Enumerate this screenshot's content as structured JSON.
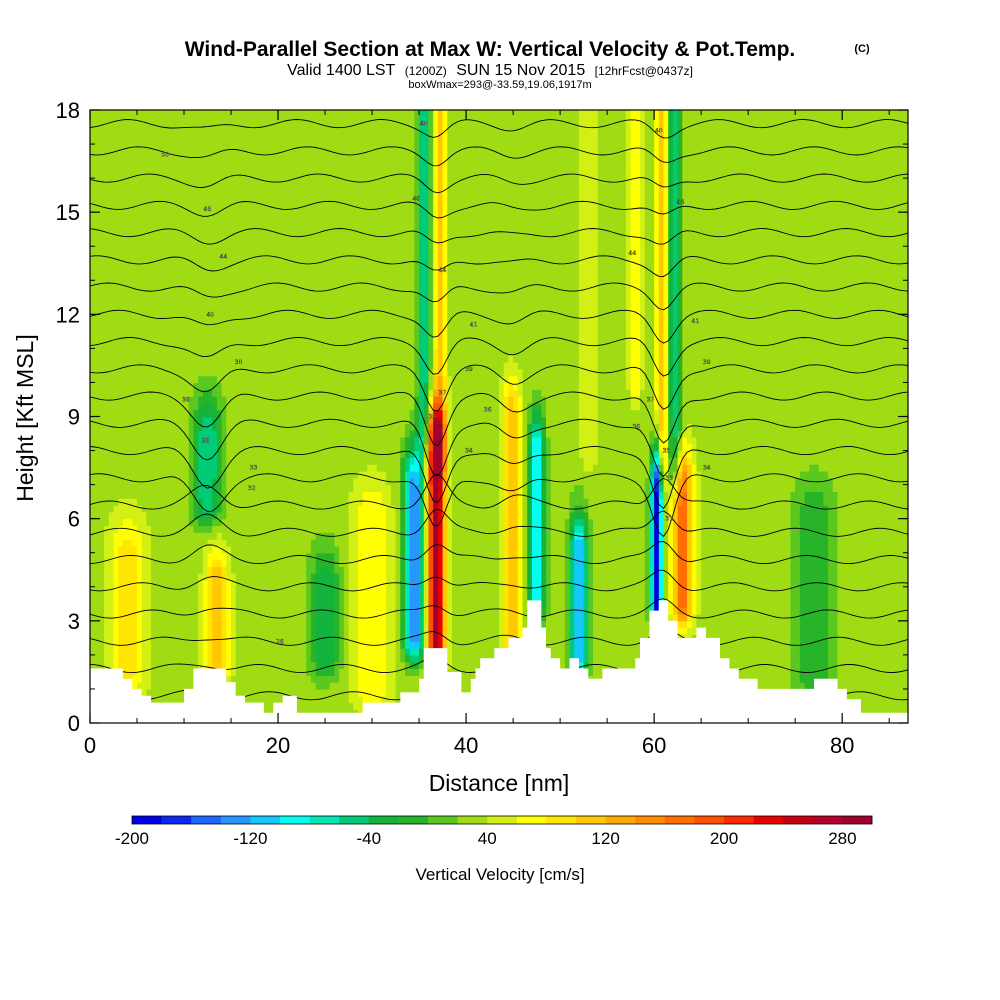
{
  "header": {
    "title": "Wind-Parallel Section at Max W: Vertical Velocity & Pot.Temp.",
    "copyright": "(C)",
    "valid_prefix": "Valid 1400 LST",
    "valid_utc": "(1200Z)",
    "valid_date": "SUN 15 Nov 2015",
    "forecast": "[12hrFcst@0437z]",
    "box_info": "boxWmax=293@-33.59,19.06,1917m"
  },
  "chart_data": {
    "type": "heatmap",
    "title": "Wind-Parallel Section at Max W: Vertical Velocity & Pot.Temp.",
    "xlabel": "Distance [nm]",
    "ylabel": "Height [Kft MSL]",
    "xlim": [
      0,
      87
    ],
    "ylim": [
      0,
      18
    ],
    "x_ticks": [
      0,
      20,
      40,
      60,
      80
    ],
    "y_ticks": [
      0,
      3,
      6,
      9,
      12,
      15,
      18
    ],
    "colorbar": {
      "label": "Vertical Velocity [cm/s]",
      "min": -200,
      "max": 300,
      "step": 20,
      "tick_values": [
        -200,
        -120,
        -40,
        40,
        120,
        200,
        280
      ],
      "tick_labels": [
        "-200",
        "-120",
        "-40",
        "40",
        "120",
        "200",
        "280"
      ],
      "colors": [
        "#0000e6",
        "#0a28f0",
        "#1e64ff",
        "#2896ff",
        "#14c8ff",
        "#00fff0",
        "#00e6b4",
        "#00cc78",
        "#14b43c",
        "#28b428",
        "#5ac81e",
        "#a0dc14",
        "#d2f014",
        "#ffff00",
        "#ffe600",
        "#ffc800",
        "#ffaa00",
        "#ff8c00",
        "#ff6e00",
        "#ff5000",
        "#ff2800",
        "#e60000",
        "#c80014",
        "#b4002a",
        "#a00030"
      ]
    },
    "background_w": 30,
    "w_features": [
      {
        "x": 36.8,
        "z_bottom": 2.2,
        "z_top": 8.2,
        "w": 293,
        "width": 0.9
      },
      {
        "x": 37.2,
        "z_bottom": 8,
        "z_top": 17.5,
        "w": 110,
        "width": 0.7
      },
      {
        "x": 34.5,
        "z_bottom": 2.5,
        "z_top": 7,
        "w": -130,
        "width": 1.1
      },
      {
        "x": 35.5,
        "z_bottom": 8.5,
        "z_top": 18,
        "w": -60,
        "width": 0.7
      },
      {
        "x": 44.8,
        "z_bottom": 2.5,
        "z_top": 9,
        "w": 120,
        "width": 1.0
      },
      {
        "x": 47.5,
        "z_bottom": 3.5,
        "z_top": 8,
        "w": -100,
        "width": 0.8
      },
      {
        "x": 52,
        "z_bottom": 2,
        "z_top": 5,
        "w": -120,
        "width": 0.9
      },
      {
        "x": 53,
        "z_bottom": 8,
        "z_top": 18,
        "w": 60,
        "width": 0.8
      },
      {
        "x": 60.3,
        "z_bottom": 3.2,
        "z_top": 7,
        "w": -200,
        "width": 0.6
      },
      {
        "x": 63,
        "z_bottom": 3.5,
        "z_top": 7,
        "w": 170,
        "width": 1.1
      },
      {
        "x": 60.8,
        "z_bottom": 7.5,
        "z_top": 18,
        "w": 120,
        "width": 0.6
      },
      {
        "x": 62.2,
        "z_bottom": 7.5,
        "z_top": 18,
        "w": -60,
        "width": 0.7
      },
      {
        "x": 12.5,
        "z_bottom": 6.5,
        "z_top": 8.5,
        "w": -60,
        "width": 1.5
      },
      {
        "x": 13.5,
        "z_bottom": 1.5,
        "z_top": 4,
        "w": 120,
        "width": 1.2
      },
      {
        "x": 4,
        "z_bottom": 1.5,
        "z_top": 5,
        "w": 90,
        "width": 2.0
      },
      {
        "x": 30,
        "z_bottom": 1,
        "z_top": 6,
        "w": 80,
        "width": 2.0
      },
      {
        "x": 77,
        "z_bottom": 1.5,
        "z_top": 6,
        "w": -20,
        "width": 2.0
      },
      {
        "x": 58,
        "z_bottom": 10,
        "z_top": 18,
        "w": 80,
        "width": 0.6
      },
      {
        "x": 25,
        "z_bottom": 2,
        "z_top": 4,
        "w": -40,
        "width": 1.5
      }
    ],
    "terrain_height": [
      [
        0,
        1.6
      ],
      [
        3.5,
        1.6
      ],
      [
        3.5,
        1.3
      ],
      [
        4.5,
        1.3
      ],
      [
        4.5,
        1.0
      ],
      [
        5.5,
        1.0
      ],
      [
        5.5,
        0.8
      ],
      [
        6.5,
        0.8
      ],
      [
        6.5,
        0.6
      ],
      [
        10,
        0.6
      ],
      [
        10,
        1.0
      ],
      [
        11,
        1.0
      ],
      [
        11,
        1.6
      ],
      [
        14.5,
        1.6
      ],
      [
        14.5,
        1.2
      ],
      [
        15.5,
        1.2
      ],
      [
        15.5,
        0.8
      ],
      [
        16.5,
        0.8
      ],
      [
        16.5,
        0.6
      ],
      [
        18.5,
        0.6
      ],
      [
        18.5,
        0.3
      ],
      [
        19.5,
        0.3
      ],
      [
        19.5,
        0.6
      ],
      [
        20.5,
        0.6
      ],
      [
        20.5,
        0.8
      ],
      [
        22,
        0.8
      ],
      [
        22,
        0.3
      ],
      [
        29,
        0.3
      ],
      [
        29,
        0.6
      ],
      [
        33,
        0.6
      ],
      [
        33,
        0.9
      ],
      [
        35,
        0.9
      ],
      [
        35,
        1.3
      ],
      [
        35.5,
        1.3
      ],
      [
        35.5,
        2.2
      ],
      [
        38,
        2.2
      ],
      [
        38,
        1.5
      ],
      [
        39.5,
        1.5
      ],
      [
        39.5,
        0.9
      ],
      [
        40.5,
        0.9
      ],
      [
        40.5,
        1.3
      ],
      [
        41,
        1.3
      ],
      [
        41,
        1.6
      ],
      [
        41.5,
        1.6
      ],
      [
        41.5,
        1.9
      ],
      [
        43,
        1.9
      ],
      [
        43,
        2.2
      ],
      [
        44.5,
        2.2
      ],
      [
        44.5,
        2.5
      ],
      [
        46,
        2.5
      ],
      [
        46,
        2.8
      ],
      [
        46.5,
        2.8
      ],
      [
        46.5,
        3.6
      ],
      [
        48,
        3.6
      ],
      [
        48,
        2.8
      ],
      [
        48.5,
        2.8
      ],
      [
        48.5,
        2.2
      ],
      [
        49,
        2.2
      ],
      [
        49,
        1.9
      ],
      [
        50,
        1.9
      ],
      [
        50,
        1.6
      ],
      [
        51,
        1.6
      ],
      [
        51,
        1.9
      ],
      [
        52,
        1.9
      ],
      [
        52,
        1.6
      ],
      [
        53,
        1.6
      ],
      [
        53,
        1.3
      ],
      [
        54.5,
        1.3
      ],
      [
        54.5,
        1.6
      ],
      [
        58,
        1.6
      ],
      [
        58,
        1.9
      ],
      [
        58.5,
        1.9
      ],
      [
        58.5,
        2.5
      ],
      [
        59.5,
        2.5
      ],
      [
        59.5,
        3.3
      ],
      [
        60.5,
        3.3
      ],
      [
        60.5,
        3.6
      ],
      [
        61.5,
        3.6
      ],
      [
        61.5,
        3.0
      ],
      [
        62.5,
        3.0
      ],
      [
        62.5,
        2.5
      ],
      [
        64.5,
        2.5
      ],
      [
        64.5,
        2.8
      ],
      [
        65.5,
        2.8
      ],
      [
        65.5,
        2.5
      ],
      [
        67,
        2.5
      ],
      [
        67,
        1.9
      ],
      [
        68,
        1.9
      ],
      [
        68,
        1.6
      ],
      [
        69,
        1.6
      ],
      [
        69,
        1.3
      ],
      [
        71,
        1.3
      ],
      [
        71,
        1.0
      ],
      [
        77,
        1.0
      ],
      [
        77,
        1.3
      ],
      [
        79.5,
        1.3
      ],
      [
        79.5,
        1.0
      ],
      [
        80.5,
        1.0
      ],
      [
        80.5,
        0.7
      ],
      [
        82,
        0.7
      ],
      [
        82,
        0.3
      ],
      [
        87,
        0.3
      ]
    ],
    "theta_contours": {
      "units": "C",
      "labels": [
        {
          "x": 8,
          "z": 16.7,
          "text": "50"
        },
        {
          "x": 12.5,
          "z": 15.1,
          "text": "46"
        },
        {
          "x": 14.2,
          "z": 13.7,
          "text": "44"
        },
        {
          "x": 12.8,
          "z": 12.0,
          "text": "40"
        },
        {
          "x": 15.8,
          "z": 10.6,
          "text": "38"
        },
        {
          "x": 10.2,
          "z": 9.5,
          "text": "36"
        },
        {
          "x": 12.3,
          "z": 8.3,
          "text": "35"
        },
        {
          "x": 17.4,
          "z": 7.5,
          "text": "33"
        },
        {
          "x": 17.2,
          "z": 6.9,
          "text": "32"
        },
        {
          "x": 20.2,
          "z": 2.4,
          "text": "26"
        },
        {
          "x": 35.5,
          "z": 17.6,
          "text": "48"
        },
        {
          "x": 34.7,
          "z": 15.4,
          "text": "46"
        },
        {
          "x": 37.5,
          "z": 13.3,
          "text": "44"
        },
        {
          "x": 40.8,
          "z": 11.7,
          "text": "41"
        },
        {
          "x": 40.3,
          "z": 10.4,
          "text": "39"
        },
        {
          "x": 37.5,
          "z": 9.7,
          "text": "37"
        },
        {
          "x": 36.4,
          "z": 9.0,
          "text": "35"
        },
        {
          "x": 42.3,
          "z": 9.2,
          "text": "36"
        },
        {
          "x": 40.3,
          "z": 8.0,
          "text": "34"
        },
        {
          "x": 60.5,
          "z": 17.4,
          "text": "48"
        },
        {
          "x": 62.8,
          "z": 15.3,
          "text": "46"
        },
        {
          "x": 57.7,
          "z": 13.8,
          "text": "44"
        },
        {
          "x": 64.4,
          "z": 11.8,
          "text": "41"
        },
        {
          "x": 65.6,
          "z": 10.6,
          "text": "39"
        },
        {
          "x": 59.6,
          "z": 9.5,
          "text": "37"
        },
        {
          "x": 58.1,
          "z": 8.7,
          "text": "36"
        },
        {
          "x": 61.3,
          "z": 8.0,
          "text": "35"
        },
        {
          "x": 65.6,
          "z": 7.5,
          "text": "34"
        },
        {
          "x": 61.6,
          "z": 7.2,
          "text": "33"
        },
        {
          "x": 61.6,
          "z": 6.0,
          "text": "31"
        }
      ]
    }
  }
}
